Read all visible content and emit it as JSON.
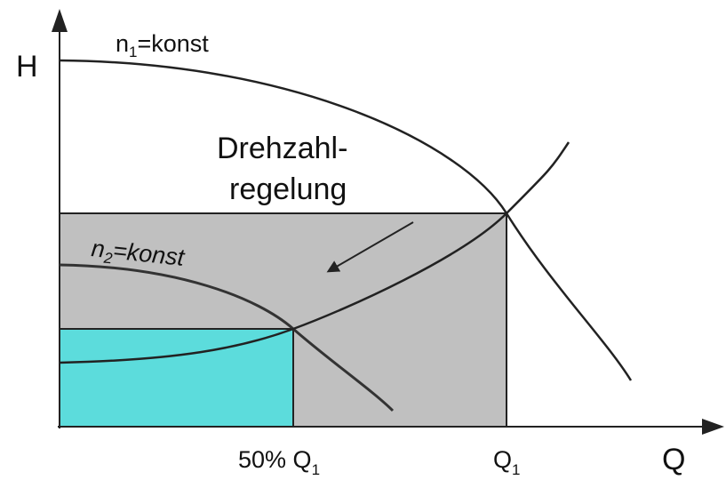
{
  "axes": {
    "y_label": "H",
    "x_label": "Q"
  },
  "curves": [
    {
      "base": "n",
      "sub": "1",
      "rest": "=konst"
    },
    {
      "base": "n",
      "sub": "2",
      "rest": "=konst"
    }
  ],
  "annotation": {
    "line1": "Drehzahl-",
    "line2": "regelung"
  },
  "x_marks": [
    {
      "prefix": "50% ",
      "base": "Q",
      "sub": "1"
    },
    {
      "base": "Q",
      "sub": "1"
    }
  ]
}
